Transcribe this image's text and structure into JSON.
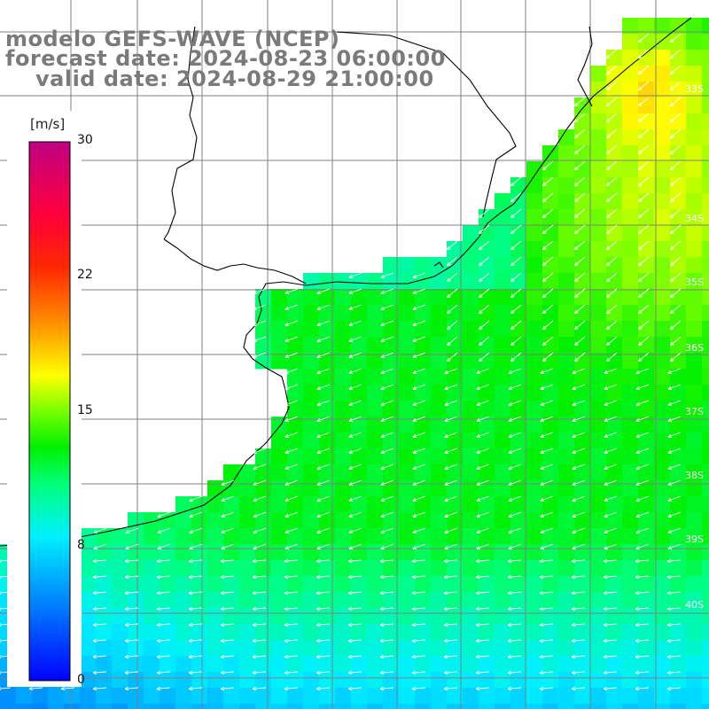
{
  "title": {
    "line1": "modelo GEFS-WAVE (NCEP)",
    "line2": "forecast date: 2024-08-23 06:00:00",
    "line3": "valid date: 2024-08-29 21:00:00"
  },
  "colorbar": {
    "unit": "[m/s]",
    "ticks": [
      "30",
      "22",
      "15",
      "8",
      "0"
    ],
    "tick_values": [
      30,
      22,
      15,
      8,
      0
    ],
    "colors": [
      "#0000ff",
      "#00c8ff",
      "#00ffff",
      "#00ff40",
      "#00ff00",
      "#80ff00",
      "#ffff00",
      "#ff8000",
      "#ff0000",
      "#ff0080",
      "#c0007f"
    ]
  },
  "latitude_labels": [
    "33S",
    "34S",
    "35S",
    "36S",
    "37S",
    "38S",
    "39S",
    "40S"
  ],
  "map": {
    "land_color": "#ffffff",
    "coast_color": "#000000",
    "grid_color": "#808080",
    "arrow_color": "#ffffff",
    "wind_direction": "flowing toward west-southwest"
  }
}
